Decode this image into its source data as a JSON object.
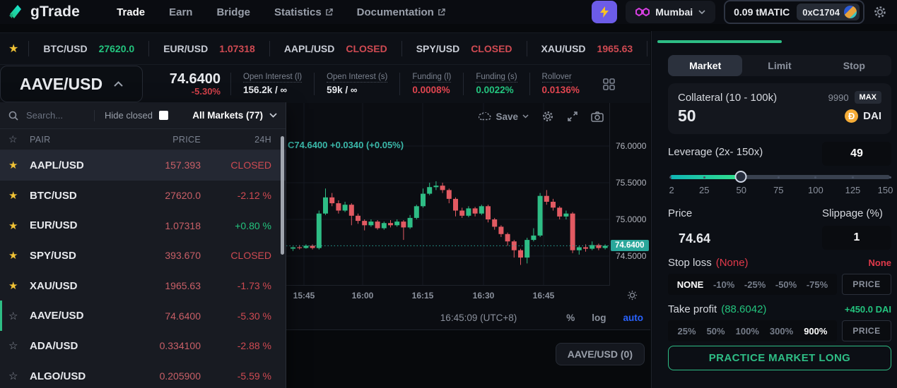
{
  "app": {
    "brand": "gTrade"
  },
  "nav": {
    "items": [
      {
        "label": "Trade",
        "active": true,
        "external": false
      },
      {
        "label": "Earn",
        "active": false,
        "external": false
      },
      {
        "label": "Bridge",
        "active": false,
        "external": false
      },
      {
        "label": "Statistics",
        "active": false,
        "external": true
      },
      {
        "label": "Documentation",
        "active": false,
        "external": true
      }
    ],
    "network": "Mumbai",
    "balance": "0.09 tMATIC",
    "wallet": "0xC1704"
  },
  "ticker": {
    "items": [
      {
        "pair": "BTC/USD",
        "value": "27620.0",
        "color": "green"
      },
      {
        "pair": "EUR/USD",
        "value": "1.07318",
        "color": "red"
      },
      {
        "pair": "AAPL/USD",
        "value": "CLOSED",
        "color": "red"
      },
      {
        "pair": "SPY/USD",
        "value": "CLOSED",
        "color": "red"
      },
      {
        "pair": "XAU/USD",
        "value": "1965.63",
        "color": "red"
      }
    ]
  },
  "pair_header": {
    "pair": "AAVE/USD",
    "price": "74.6400",
    "change": "-5.30%",
    "stats": [
      {
        "label": "Open Interest (l)",
        "value": "156.2k / ∞",
        "color": "white"
      },
      {
        "label": "Open Interest (s)",
        "value": "59k / ∞",
        "color": "white"
      },
      {
        "label": "Funding (l)",
        "value": "0.0008%",
        "color": "red"
      },
      {
        "label": "Funding (s)",
        "value": "0.0022%",
        "color": "green"
      },
      {
        "label": "Rollover",
        "value": "0.0136%",
        "color": "red"
      }
    ]
  },
  "market_list": {
    "search_placeholder": "Search...",
    "hide_closed_label": "Hide closed",
    "filter_label": "All Markets (77)",
    "columns": [
      "PAIR",
      "PRICE",
      "24H"
    ],
    "rows": [
      {
        "pair": "AAPL/USD",
        "price": "157.393",
        "change": "CLOSED",
        "dir": "down",
        "fav": true,
        "hover": true,
        "selected": false
      },
      {
        "pair": "BTC/USD",
        "price": "27620.0",
        "change": "-2.12 %",
        "dir": "down",
        "fav": true,
        "hover": false,
        "selected": false
      },
      {
        "pair": "EUR/USD",
        "price": "1.07318",
        "change": "+0.80 %",
        "dir": "up",
        "fav": true,
        "hover": false,
        "selected": false
      },
      {
        "pair": "SPY/USD",
        "price": "393.670",
        "change": "CLOSED",
        "dir": "down",
        "fav": true,
        "hover": false,
        "selected": false
      },
      {
        "pair": "XAU/USD",
        "price": "1965.63",
        "change": "-1.73 %",
        "dir": "down",
        "fav": true,
        "hover": false,
        "selected": false
      },
      {
        "pair": "AAVE/USD",
        "price": "74.6400",
        "change": "-5.30 %",
        "dir": "down",
        "fav": false,
        "hover": false,
        "selected": true
      },
      {
        "pair": "ADA/USD",
        "price": "0.334100",
        "change": "-2.88 %",
        "dir": "down",
        "fav": false,
        "hover": false,
        "selected": false
      },
      {
        "pair": "ALGO/USD",
        "price": "0.205900",
        "change": "-5.59 %",
        "dir": "down",
        "fav": false,
        "hover": false,
        "selected": false
      }
    ]
  },
  "chart": {
    "legend": "C74.6400  +0.0340 (+0.05%)",
    "save_label": "Save",
    "current_price_label": "74.6400",
    "clock": "16:45:09 (UTC+8)",
    "footer_buttons": [
      {
        "label": "%",
        "accent": false
      },
      {
        "label": "log",
        "accent": false
      },
      {
        "label": "auto",
        "accent": true
      }
    ]
  },
  "chart_data": {
    "type": "candlestick",
    "pair": "AAVE/USD",
    "title": "AAVE/USD intraday candles",
    "y_ticks": [
      76.0,
      75.5,
      75.0,
      74.5
    ],
    "y_tick_labels": [
      "76.0000",
      "75.5000",
      "75.0000",
      "74.5000"
    ],
    "x_labels": [
      "15:45",
      "16:00",
      "16:15",
      "16:30",
      "16:45"
    ],
    "ylim": [
      74.3,
      76.2
    ],
    "last_price": 74.64,
    "up_color": "#2ebd85",
    "down_color": "#e25a62",
    "candles_ohlc": [
      [
        74.6,
        74.63,
        74.57,
        74.62
      ],
      [
        74.62,
        74.65,
        74.59,
        74.61
      ],
      [
        74.61,
        74.66,
        74.6,
        74.64
      ],
      [
        74.64,
        74.66,
        74.59,
        74.61
      ],
      [
        74.61,
        75.12,
        74.59,
        75.08
      ],
      [
        75.08,
        75.42,
        75.06,
        75.3
      ],
      [
        75.3,
        75.36,
        75.18,
        75.22
      ],
      [
        75.22,
        75.26,
        75.08,
        75.12
      ],
      [
        75.12,
        75.24,
        75.1,
        75.2
      ],
      [
        75.2,
        75.22,
        74.92,
        75.05
      ],
      [
        75.05,
        75.08,
        74.94,
        74.98
      ],
      [
        74.98,
        75.0,
        74.85,
        74.92
      ],
      [
        74.92,
        75.0,
        74.9,
        74.97
      ],
      [
        74.97,
        74.99,
        74.86,
        74.88
      ],
      [
        74.88,
        74.97,
        74.86,
        74.95
      ],
      [
        74.95,
        74.99,
        74.89,
        74.92
      ],
      [
        74.92,
        75.0,
        74.9,
        74.97
      ],
      [
        74.97,
        74.99,
        74.72,
        74.89
      ],
      [
        74.89,
        75.06,
        74.87,
        75.02
      ],
      [
        75.02,
        75.2,
        75.0,
        75.18
      ],
      [
        75.18,
        75.42,
        75.16,
        75.35
      ],
      [
        75.35,
        75.5,
        75.33,
        75.44
      ],
      [
        75.44,
        75.52,
        75.4,
        75.46
      ],
      [
        75.46,
        75.5,
        75.36,
        75.4
      ],
      [
        75.4,
        75.42,
        75.22,
        75.28
      ],
      [
        75.28,
        75.3,
        75.04,
        75.12
      ],
      [
        75.12,
        75.16,
        75.02,
        75.05
      ],
      [
        75.05,
        75.18,
        75.03,
        75.15
      ],
      [
        75.15,
        75.17,
        75.04,
        75.08
      ],
      [
        75.08,
        75.2,
        75.06,
        75.18
      ],
      [
        75.18,
        75.2,
        74.96,
        75.0
      ],
      [
        75.0,
        75.02,
        74.86,
        74.9
      ],
      [
        74.9,
        74.92,
        74.76,
        74.8
      ],
      [
        74.8,
        74.82,
        74.64,
        74.7
      ],
      [
        74.7,
        74.72,
        74.48,
        74.58
      ],
      [
        74.58,
        74.6,
        74.38,
        74.48
      ],
      [
        74.48,
        74.75,
        74.4,
        74.72
      ],
      [
        74.72,
        74.88,
        74.7,
        74.78
      ],
      [
        74.78,
        75.36,
        74.76,
        75.32
      ],
      [
        75.32,
        75.4,
        75.2,
        75.24
      ],
      [
        75.24,
        75.28,
        75.12,
        75.16
      ],
      [
        75.16,
        75.18,
        75.0,
        75.04
      ],
      [
        75.04,
        75.12,
        75.0,
        75.08
      ],
      [
        75.08,
        75.1,
        74.54,
        74.58
      ],
      [
        74.58,
        74.64,
        74.52,
        74.62
      ],
      [
        74.62,
        74.66,
        74.56,
        74.6
      ],
      [
        74.6,
        74.7,
        74.58,
        74.65
      ],
      [
        74.65,
        74.67,
        74.58,
        74.61
      ],
      [
        74.61,
        74.66,
        74.59,
        74.64
      ]
    ]
  },
  "trade_panel": {
    "tabs": [
      {
        "label": "Market",
        "active": true
      },
      {
        "label": "Limit",
        "active": false
      },
      {
        "label": "Stop",
        "active": false
      }
    ],
    "collateral": {
      "label": "Collateral (10 - 100k)",
      "max_hint": "9990",
      "max_label": "MAX",
      "value": "50",
      "asset": "DAI"
    },
    "leverage": {
      "label": "Leverage (2x- 150x)",
      "value": "49",
      "ticks": [
        "2",
        "25",
        "50",
        "75",
        "100",
        "125",
        "150"
      ],
      "fill_percent": 32
    },
    "price": {
      "label": "Price",
      "value": "74.64"
    },
    "slippage": {
      "label": "Slippage (%)",
      "value": "1"
    },
    "stop_loss": {
      "label": "Stop loss",
      "hint": "(None)",
      "right_value": "None",
      "options": [
        "NONE",
        "-10%",
        "-25%",
        "-50%",
        "-75%"
      ],
      "active": "NONE",
      "price_label": "PRICE"
    },
    "take_profit": {
      "label": "Take profit",
      "hint": "(88.6042)",
      "right_value": "+450.0 DAI",
      "options": [
        "25%",
        "50%",
        "100%",
        "300%",
        "900%"
      ],
      "active": "900%",
      "price_label": "PRICE"
    },
    "submit_label": "PRACTICE MARKET LONG"
  },
  "bottom": {
    "trades_tab": "AAVE/USD (0)"
  },
  "colors": {
    "accent_green": "#2ebd85",
    "accent_red": "#e0454f",
    "badge_teal": "#2aa79b",
    "link_blue": "#2962ff",
    "star_gold": "#f1c335",
    "purple": "#6c5ce7",
    "polygon_magenta": "#d53fe0"
  }
}
